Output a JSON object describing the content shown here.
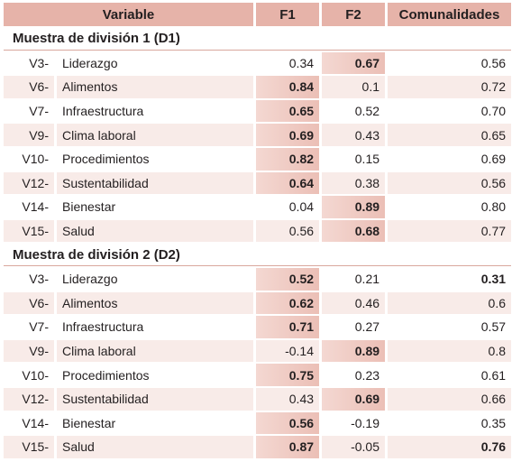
{
  "table": {
    "header": [
      "Variable",
      "F1",
      "F2",
      "Comunalidades"
    ],
    "sections": [
      {
        "title": "Muestra de división 1 (D1)",
        "rows": [
          {
            "cells": [
              "V3-",
              "Liderazgo",
              "0.34",
              "0.67",
              "0.56"
            ],
            "bold": [
              3
            ],
            "shaded": [
              3
            ]
          },
          {
            "cells": [
              "V6-",
              "Alimentos",
              "0.84",
              "0.1",
              "0.72"
            ],
            "bold": [
              2
            ],
            "shaded": [
              2
            ]
          },
          {
            "cells": [
              "V7-",
              "Infraestructura",
              "0.65",
              "0.52",
              "0.70"
            ],
            "bold": [
              2
            ],
            "shaded": [
              2
            ]
          },
          {
            "cells": [
              "V9-",
              "Clima laboral",
              "0.69",
              "0.43",
              "0.65"
            ],
            "bold": [
              2
            ],
            "shaded": [
              2
            ]
          },
          {
            "cells": [
              "V10-",
              "Procedimientos",
              "0.82",
              "0.15",
              "0.69"
            ],
            "bold": [
              2
            ],
            "shaded": [
              2
            ]
          },
          {
            "cells": [
              "V12-",
              "Sustentabilidad",
              "0.64",
              "0.38",
              "0.56"
            ],
            "bold": [
              2
            ],
            "shaded": [
              2
            ]
          },
          {
            "cells": [
              "V14-",
              "Bienestar",
              "0.04",
              "0.89",
              "0.80"
            ],
            "bold": [
              3
            ],
            "shaded": [
              3
            ]
          },
          {
            "cells": [
              "V15-",
              "Salud",
              "0.56",
              "0.68",
              "0.77"
            ],
            "bold": [
              3
            ],
            "shaded": [
              3
            ]
          }
        ]
      },
      {
        "title": "Muestra de división 2 (D2)",
        "rows": [
          {
            "cells": [
              "V3-",
              "Liderazgo",
              "0.52",
              "0.21",
              "0.31"
            ],
            "bold": [
              2,
              4
            ],
            "shaded": [
              2
            ]
          },
          {
            "cells": [
              "V6-",
              "Alimentos",
              "0.62",
              "0.46",
              "0.6"
            ],
            "bold": [
              2
            ],
            "shaded": [
              2
            ]
          },
          {
            "cells": [
              "V7-",
              "Infraestructura",
              "0.71",
              "0.27",
              "0.57"
            ],
            "bold": [
              2
            ],
            "shaded": [
              2
            ]
          },
          {
            "cells": [
              "V9-",
              "Clima laboral",
              "-0.14",
              "0.89",
              "0.8"
            ],
            "bold": [
              3
            ],
            "shaded": [
              3
            ]
          },
          {
            "cells": [
              "V10-",
              "Procedimientos",
              "0.75",
              "0.23",
              "0.61"
            ],
            "bold": [
              2
            ],
            "shaded": [
              2
            ]
          },
          {
            "cells": [
              "V12-",
              "Sustentabilidad",
              "0.43",
              "0.69",
              "0.66"
            ],
            "bold": [
              3
            ],
            "shaded": [
              3
            ]
          },
          {
            "cells": [
              "V14-",
              "Bienestar",
              "0.56",
              "-0.19",
              "0.35"
            ],
            "bold": [
              2
            ],
            "shaded": [
              2
            ]
          },
          {
            "cells": [
              "V15-",
              "Salud",
              "0.87",
              "-0.05",
              "0.76"
            ],
            "bold": [
              2,
              4
            ],
            "shaded": [
              2
            ]
          }
        ]
      }
    ]
  }
}
